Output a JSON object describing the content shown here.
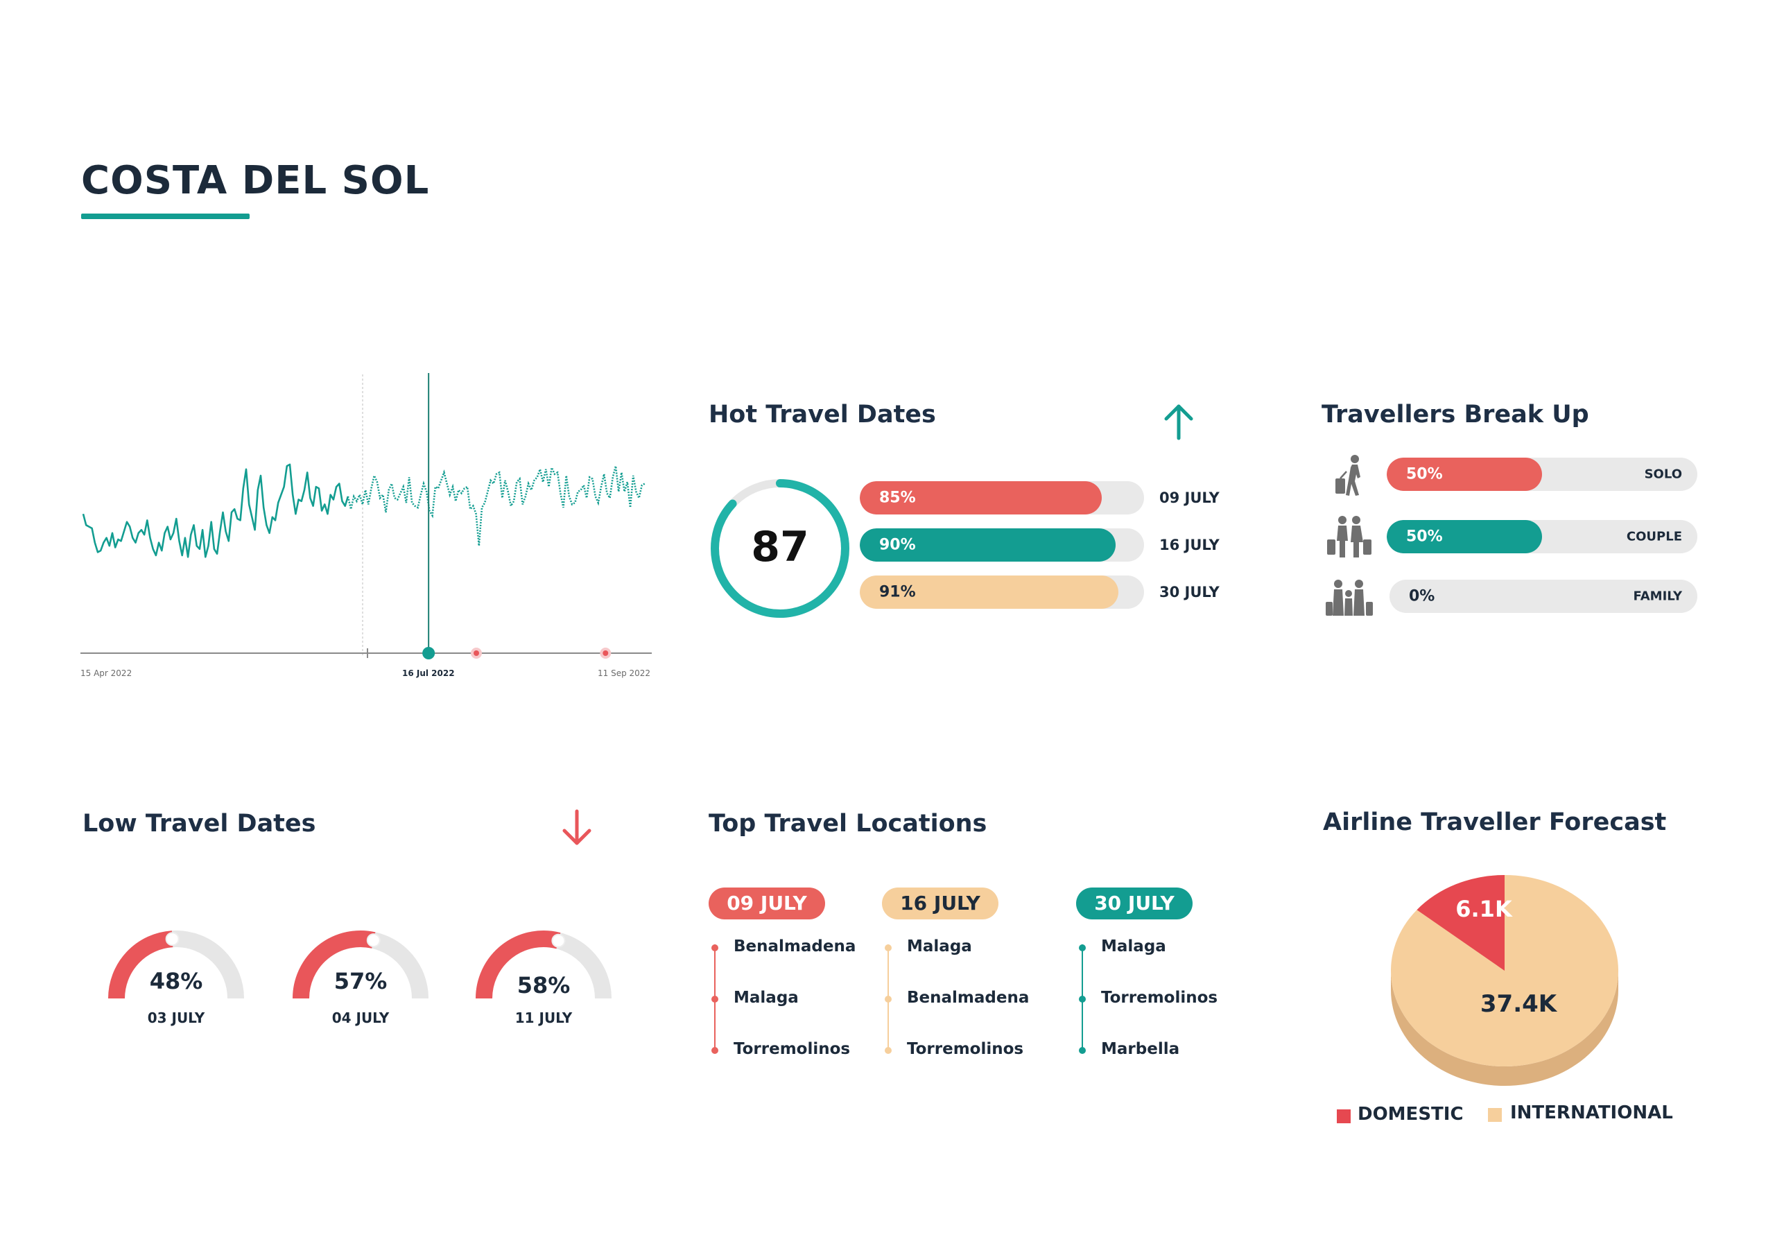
{
  "page": {
    "title": "COSTA DEL SOL"
  },
  "colors": {
    "teal": "#139d91",
    "red": "#e9565a",
    "peach": "#f6cf9c",
    "navy": "#1e2f45",
    "track": "#e9e9e9"
  },
  "trend": {
    "x_start": "15 Apr 2022",
    "x_mid": "16 Jul 2022",
    "x_end": "11 Sep 2022"
  },
  "chart_data": {
    "type": "line",
    "title": "",
    "xlabel": "",
    "ylabel": "",
    "x_labels": [
      "15 Apr 2022",
      "16 Jul 2022",
      "11 Sep 2022"
    ],
    "series": [
      {
        "name": "actual",
        "style": "solid",
        "values": [
          56,
          49,
          48,
          47,
          38,
          32,
          33,
          38,
          41,
          36,
          44,
          35,
          40,
          39,
          45,
          51,
          48,
          41,
          38,
          44,
          46,
          43,
          52,
          41,
          34,
          30,
          38,
          33,
          44,
          48,
          40,
          44,
          53,
          39,
          30,
          41,
          29,
          43,
          49,
          36,
          34,
          46,
          29,
          36,
          51,
          34,
          31,
          45,
          57,
          45,
          39,
          57,
          59,
          53,
          52,
          72,
          84,
          62,
          54,
          46,
          71,
          80,
          60,
          49,
          44,
          54,
          52,
          63,
          68,
          73,
          86,
          87,
          68,
          56,
          65,
          64,
          71,
          82,
          66,
          61,
          73,
          72,
          58,
          62,
          56,
          68,
          65,
          73,
          75,
          64,
          61,
          67
        ]
      },
      {
        "name": "forecast",
        "style": "dotted",
        "values": [
          59,
          67,
          64,
          68,
          62,
          71,
          62,
          72,
          80,
          76,
          66,
          68,
          57,
          71,
          75,
          66,
          65,
          69,
          73,
          63,
          79,
          63,
          61,
          60,
          68,
          75,
          70,
          58,
          55,
          73,
          72,
          77,
          82,
          75,
          68,
          73,
          64,
          71,
          69,
          72,
          73,
          59,
          61,
          56,
          36,
          60,
          63,
          70,
          77,
          75,
          81,
          82,
          66,
          77,
          70,
          61,
          64,
          76,
          78,
          62,
          67,
          75,
          71,
          77,
          79,
          84,
          76,
          84,
          73,
          85,
          81,
          82,
          69,
          60,
          80,
          67,
          62,
          63,
          70,
          71,
          74,
          66,
          79,
          78,
          67,
          63,
          73,
          81,
          69,
          66,
          79,
          86,
          70,
          82,
          70,
          76,
          60,
          80,
          70,
          66,
          74,
          75
        ]
      }
    ],
    "markers": [
      {
        "label": "16 Jul 2022",
        "kind": "selected",
        "position": 0.615
      },
      {
        "label": "",
        "kind": "event",
        "position": 0.7
      },
      {
        "label": "",
        "kind": "event",
        "position": 0.93
      }
    ]
  },
  "hot": {
    "title": "Hot Travel Dates",
    "score": "87",
    "score_value": 87,
    "rows": [
      {
        "pct": "85%",
        "value": 85,
        "date": "09 JULY",
        "color": "#e9625d"
      },
      {
        "pct": "90%",
        "value": 90,
        "date": "16 JULY",
        "color": "#139d91"
      },
      {
        "pct": "91%",
        "value": 91,
        "date": "30 JULY",
        "color": "#f6cf9c"
      }
    ]
  },
  "travellers": {
    "title": "Travellers Break Up",
    "rows": [
      {
        "pct": "50%",
        "value": 50,
        "type": "SOLO",
        "icon": "solo-traveller-icon",
        "color": "#e9625d"
      },
      {
        "pct": "50%",
        "value": 50,
        "type": "COUPLE",
        "icon": "couple-traveller-icon",
        "color": "#139d91"
      },
      {
        "pct": "0%",
        "value": 0,
        "type": "FAMILY",
        "icon": "family-traveller-icon",
        "color": "#e9e9e9"
      }
    ]
  },
  "low": {
    "title": "Low Travel Dates",
    "gauges": [
      {
        "pct": "48%",
        "value": 48,
        "date": "03 JULY"
      },
      {
        "pct": "57%",
        "value": 57,
        "date": "04 JULY"
      },
      {
        "pct": "58%",
        "value": 58,
        "date": "11 JULY"
      }
    ]
  },
  "locations": {
    "title": "Top Travel Locations",
    "columns": [
      {
        "date": "09 JULY",
        "color": "#e9625d",
        "text_color": "#ffffff",
        "places": [
          "Benalmadena",
          "Malaga",
          "Torremolinos"
        ]
      },
      {
        "date": "16 JULY",
        "color": "#f6cf9c",
        "text_color": "#1c2a3a",
        "places": [
          "Malaga",
          "Benalmadena",
          "Torremolinos"
        ]
      },
      {
        "date": "30 JULY",
        "color": "#139d91",
        "text_color": "#ffffff",
        "places": [
          "Malaga",
          "Torremolinos",
          "Marbella"
        ]
      }
    ]
  },
  "forecast": {
    "title": "Airline Traveller Forecast",
    "domestic_value": "6.1K",
    "international_value": "37.4K",
    "domestic_label": "DOMESTIC",
    "international_label": "INTERNATIONAL",
    "domestic_num": 6.1,
    "international_num": 37.4
  }
}
